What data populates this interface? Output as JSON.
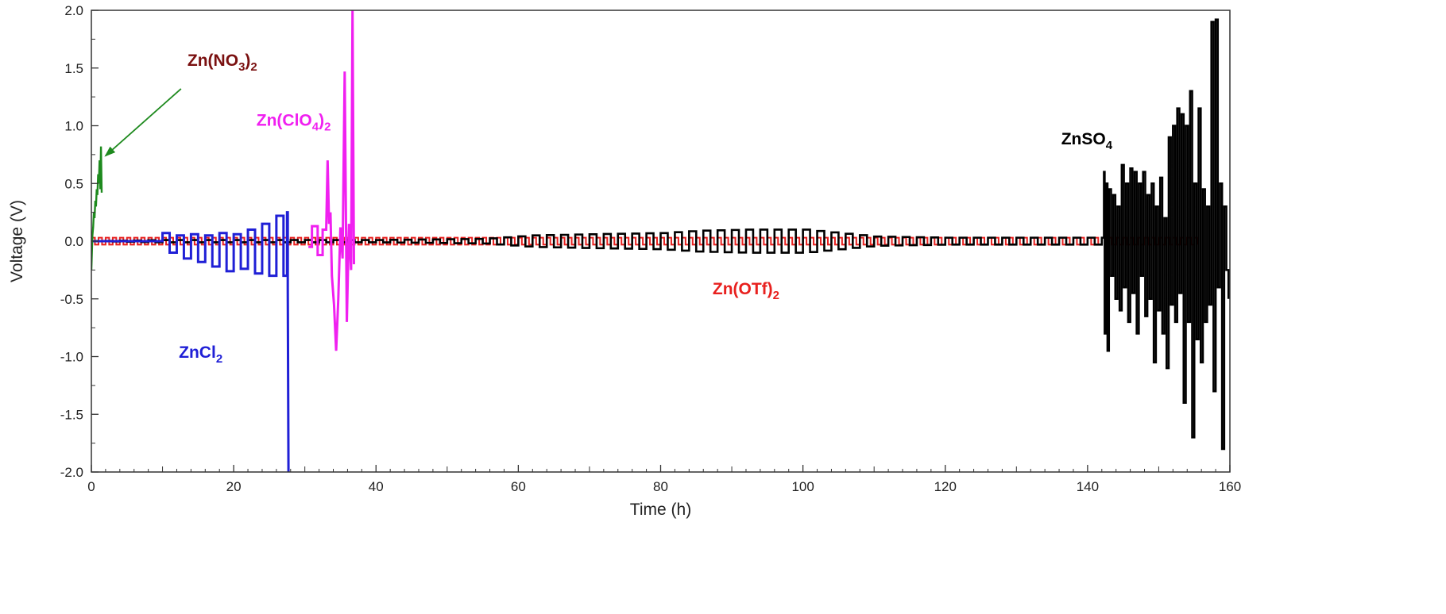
{
  "chart_data": {
    "type": "line",
    "xlabel": "Time (h)",
    "ylabel": "Voltage (V)",
    "xlim": [
      0,
      160
    ],
    "ylim": [
      -2.0,
      2.0
    ],
    "x_ticks": [
      0,
      20,
      40,
      60,
      80,
      100,
      120,
      140,
      160
    ],
    "y_ticks": [
      -2.0,
      -1.5,
      -1.0,
      -0.5,
      0.0,
      0.5,
      1.0,
      1.5,
      2.0
    ],
    "x_tick_labels": [
      "0",
      "20",
      "40",
      "60",
      "80",
      "100",
      "120",
      "140",
      "160"
    ],
    "y_tick_labels": [
      "-2.0",
      "-1.5",
      "-1.0",
      "-0.5",
      "0.0",
      "0.5",
      "1.0",
      "1.5",
      "2.0"
    ],
    "grid": false,
    "colors": {
      "ZnSO4": "#000000",
      "ZnOTf2": "#e8201e",
      "ZnCl2": "#1f1fd6",
      "ZnClO4": "#f020f0",
      "ZnNO3": "#1e8a1e",
      "ZnNO3_label": "#7a1010"
    },
    "series": [
      {
        "id": "ZnNO3",
        "x": [
          0,
          0.15,
          0.25,
          0.35,
          0.45,
          0.55,
          0.65,
          0.75,
          0.85,
          0.95,
          1.05,
          1.15,
          1.25,
          1.35,
          1.45
        ],
        "y": [
          -0.25,
          0.05,
          0.12,
          0.25,
          0.2,
          0.35,
          0.3,
          0.45,
          0.4,
          0.58,
          0.5,
          0.7,
          0.45,
          0.82,
          0.42
        ]
      },
      {
        "id": "ZnCl2",
        "x": [
          0,
          10,
          10,
          11,
          11,
          12,
          12,
          13,
          13,
          14,
          14,
          15,
          15,
          16,
          16,
          17,
          17,
          18,
          18,
          19,
          19,
          20,
          20,
          21,
          21,
          22,
          22,
          23,
          23,
          24,
          24,
          25,
          25,
          26,
          26,
          27,
          27,
          27.5,
          27.5,
          27.6,
          27.6,
          27.7
        ],
        "y": [
          0,
          0,
          0.07,
          0.07,
          -0.1,
          -0.1,
          0.05,
          0.05,
          -0.15,
          -0.15,
          0.06,
          0.06,
          -0.18,
          -0.18,
          0.05,
          0.05,
          -0.22,
          -0.22,
          0.07,
          0.07,
          -0.26,
          -0.26,
          0.06,
          0.06,
          -0.24,
          -0.24,
          0.1,
          0.1,
          -0.28,
          -0.28,
          0.15,
          0.15,
          -0.3,
          -0.3,
          0.22,
          0.22,
          -0.3,
          -0.3,
          0.25,
          0.25,
          -0.4,
          -2.0
        ]
      },
      {
        "id": "ZnClO4",
        "x": [
          30.5,
          31,
          31,
          31.8,
          31.8,
          32.5,
          32.5,
          33,
          33.2,
          33.4,
          33.6,
          33.8,
          34.1,
          34.4,
          34.7,
          35,
          35.3,
          35.6,
          35.9,
          36.2,
          36.5,
          36.7,
          36.9
        ],
        "y": [
          -0.05,
          -0.05,
          0.13,
          0.13,
          -0.12,
          -0.12,
          0.1,
          0.1,
          0.7,
          0.15,
          0.25,
          -0.3,
          -0.55,
          -0.95,
          -0.5,
          0.12,
          -0.15,
          1.47,
          -0.7,
          0.15,
          -0.25,
          2.0,
          -0.2
        ]
      },
      {
        "id": "ZnOTf2",
        "x": [
          0,
          155.5
        ],
        "y": [
          0,
          0
        ],
        "amplitude": 0.03,
        "period_h": 1.0
      },
      {
        "id": "ZnSO4",
        "x": [
          0,
          10,
          40,
          55,
          62,
          70,
          80,
          85,
          92,
          100,
          105,
          110,
          120,
          130,
          140,
          142
        ],
        "amplitude": [
          0.0,
          0.01,
          0.01,
          0.02,
          0.05,
          0.06,
          0.07,
          0.09,
          0.1,
          0.1,
          0.07,
          0.04,
          0.03,
          0.03,
          0.03,
          0.03
        ],
        "period_h": 2.0,
        "tail_x": [
          142,
          142.3,
          142.4,
          142.6,
          142.8,
          143,
          143.3,
          143.6,
          143.9,
          144.2,
          144.5,
          144.8,
          145.1,
          145.4,
          145.7,
          146,
          146.3,
          146.6,
          146.9,
          147.2,
          147.5,
          147.8,
          148.1,
          148.4,
          148.7,
          149,
          149.3,
          149.6,
          149.9,
          150.2,
          150.5,
          150.8,
          151.1,
          151.4,
          151.7,
          152,
          152.3,
          152.6,
          152.9,
          153.2,
          153.5,
          153.8,
          154.1,
          154.4,
          154.7,
          155,
          155.3,
          155.6,
          155.9,
          156.2,
          156.5,
          156.8,
          157.1,
          157.4,
          157.7,
          158,
          158.3,
          158.6,
          158.9,
          159.2,
          159.5,
          159.8
        ],
        "tail_y": [
          0.03,
          0.6,
          -0.8,
          0.5,
          -0.95,
          0.45,
          -0.3,
          0.4,
          -0.5,
          0.3,
          -0.6,
          0.66,
          -0.4,
          0.5,
          -0.7,
          0.63,
          -0.45,
          0.6,
          -0.8,
          0.5,
          -0.3,
          0.6,
          -0.65,
          0.4,
          -0.5,
          0.5,
          -1.05,
          0.3,
          -0.6,
          0.55,
          -0.8,
          0.2,
          -1.1,
          0.9,
          -0.55,
          1.0,
          -0.7,
          1.15,
          -0.45,
          1.1,
          -1.4,
          1.0,
          -0.7,
          1.3,
          -1.7,
          0.5,
          -0.85,
          1.15,
          -1.05,
          0.45,
          -0.7,
          0.3,
          -0.55,
          1.9,
          -1.3,
          1.92,
          -0.4,
          0.5,
          -1.8,
          0.3,
          -0.25,
          -0.5
        ]
      }
    ],
    "annotations": [
      {
        "id": "ann-nitrate",
        "base": "Zn(NO",
        "sub1": "3",
        "mid": ")",
        "sub2": "2",
        "x": 13.5,
        "y": 1.52,
        "color": "#7a1010"
      },
      {
        "id": "ann-perchlorate",
        "base": "Zn(ClO",
        "sub1": "4",
        "mid": ")",
        "sub2": "2",
        "x": 23.2,
        "y": 1.0,
        "color": "#f020f0"
      },
      {
        "id": "ann-sulfate",
        "base": "ZnSO",
        "sub1": "4",
        "mid": "",
        "sub2": "",
        "x": 136.3,
        "y": 0.84,
        "color": "#000000"
      },
      {
        "id": "ann-triflate",
        "base": "Zn(OTf)",
        "sub1": "",
        "mid": "",
        "sub2": "2",
        "x": 87.3,
        "y": -0.46,
        "color": "#e8201e"
      },
      {
        "id": "ann-chloride",
        "base": "ZnCl",
        "sub1": "",
        "mid": "",
        "sub2": "2",
        "x": 12.3,
        "y": -1.01,
        "color": "#1f1fd6"
      }
    ],
    "arrow": {
      "from": [
        12.6,
        1.32
      ],
      "to": [
        2.0,
        0.74
      ],
      "color": "#1e8a1e"
    }
  }
}
